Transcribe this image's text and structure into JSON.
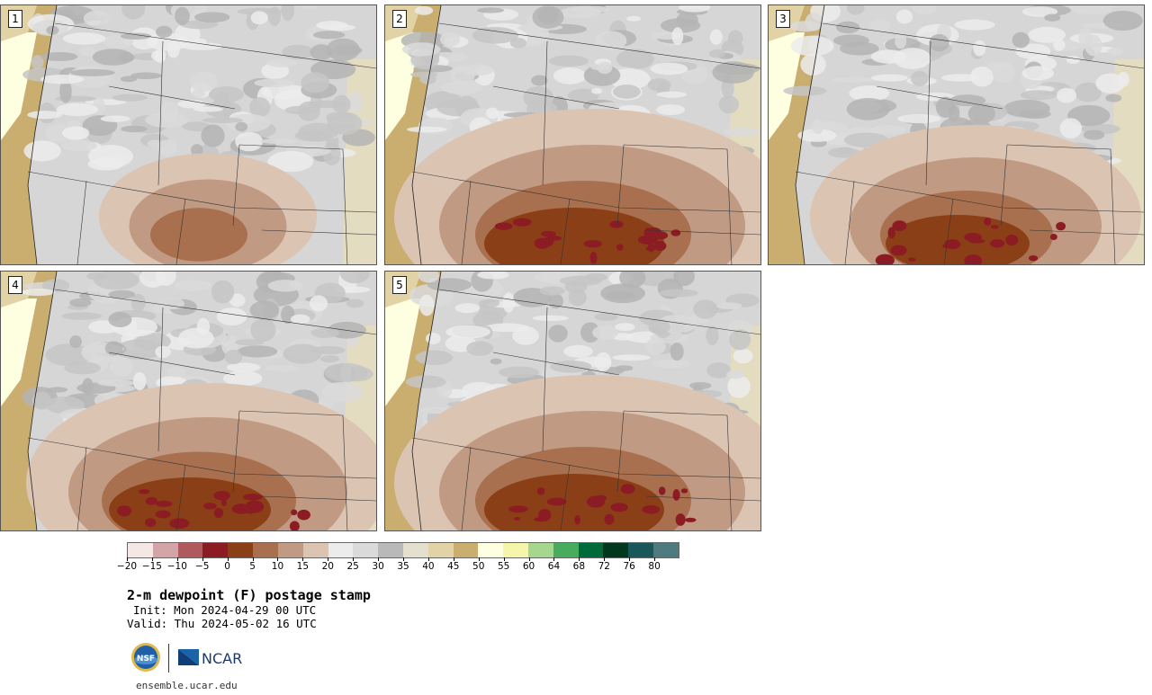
{
  "panels": [
    {
      "label": "1",
      "intensity": 0.45
    },
    {
      "label": "2",
      "intensity": 1.0
    },
    {
      "label": "3",
      "intensity": 0.8
    },
    {
      "label": "4",
      "intensity": 0.9
    },
    {
      "label": "5",
      "intensity": 1.0
    }
  ],
  "colorbar": {
    "colors": [
      "#f5e7e6",
      "#d4a5a6",
      "#b05a5e",
      "#8c1c24",
      "#8b3f16",
      "#a8704f",
      "#c19a83",
      "#dcc4b3",
      "#ececec",
      "#dadada",
      "#b9b9b9",
      "#e3e0cf",
      "#e2d3a7",
      "#c9ae70",
      "#fefee0",
      "#f5f5ac",
      "#a6d78e",
      "#48ac5f",
      "#006b3a",
      "#00381f",
      "#1a575b",
      "#4e7b80"
    ],
    "tick_labels": [
      "−20",
      "−15",
      "−10",
      "−5",
      "0",
      "5",
      "10",
      "15",
      "20",
      "25",
      "30",
      "35",
      "40",
      "45",
      "50",
      "55",
      "60",
      "64",
      "68",
      "72",
      "76",
      "80"
    ]
  },
  "title": "2-m dewpoint (F) postage stamp",
  "init": "Init: Mon 2024-04-29 00 UTC",
  "valid": "Valid: Thu 2024-05-02 16 UTC",
  "logos": {
    "nsf": "NSF",
    "ncar": "NCAR"
  },
  "url": "ensemble.ucar.edu"
}
